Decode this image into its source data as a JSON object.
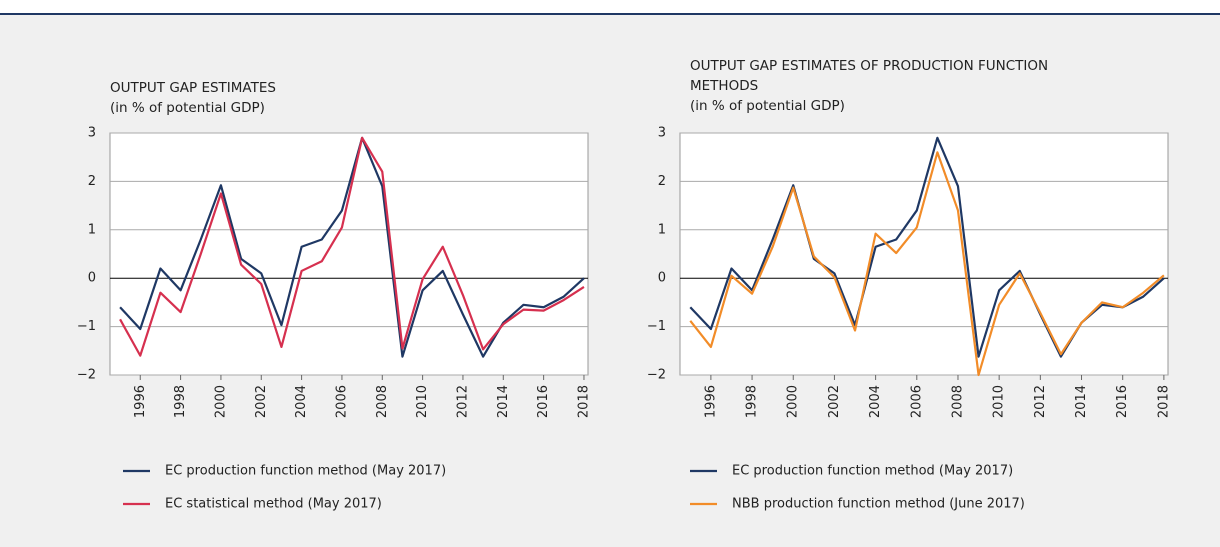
{
  "chart_data": [
    {
      "type": "line",
      "title": "OUTPUT GAP ESTIMATES",
      "subtitle": "(in % of potential GDP)",
      "x": [
        1995,
        1996,
        1997,
        1998,
        1999,
        2000,
        2001,
        2002,
        2003,
        2004,
        2005,
        2006,
        2007,
        2008,
        2009,
        2010,
        2011,
        2012,
        2013,
        2014,
        2015,
        2016,
        2017,
        2018
      ],
      "xlim": [
        1994.5,
        2018.2
      ],
      "xticks": [
        1996,
        1998,
        2000,
        2002,
        2004,
        2006,
        2008,
        2010,
        2012,
        2014,
        2016,
        2018
      ],
      "ylim": [
        -2,
        3
      ],
      "yticks": [
        {
          "value": -2,
          "label": "−2"
        },
        {
          "value": -1,
          "label": "−1"
        },
        0,
        1,
        2,
        3
      ],
      "grid": true,
      "series": [
        {
          "name": "EC production function method (May 2017)",
          "color": "#1f3864",
          "values": [
            -0.6,
            -1.05,
            0.2,
            -0.25,
            0.8,
            1.92,
            0.4,
            0.1,
            -0.97,
            0.65,
            0.8,
            1.4,
            2.9,
            1.9,
            -1.62,
            -0.25,
            0.15,
            -0.75,
            -1.62,
            -0.92,
            -0.55,
            -0.6,
            -0.38,
            0
          ]
        },
        {
          "name": "EC statistical method (May 2017)",
          "color": "#d6304f",
          "values": [
            -0.85,
            -1.6,
            -0.3,
            -0.7,
            0.5,
            1.75,
            0.28,
            -0.12,
            -1.42,
            0.15,
            0.35,
            1.05,
            2.9,
            2.2,
            -1.45,
            -0.02,
            0.65,
            -0.35,
            -1.47,
            -0.95,
            -0.65,
            -0.67,
            -0.45,
            -0.18
          ]
        }
      ]
    },
    {
      "type": "line",
      "title": "OUTPUT GAP ESTIMATES OF PRODUCTION FUNCTION METHODS",
      "subtitle": "(in % of potential GDP)",
      "x": [
        1995,
        1996,
        1997,
        1998,
        1999,
        2000,
        2001,
        2002,
        2003,
        2004,
        2005,
        2006,
        2007,
        2008,
        2009,
        2010,
        2011,
        2012,
        2013,
        2014,
        2015,
        2016,
        2017,
        2018
      ],
      "xlim": [
        1994.5,
        2018.2
      ],
      "xticks": [
        1996,
        1998,
        2000,
        2002,
        2004,
        2006,
        2008,
        2010,
        2012,
        2014,
        2016,
        2018
      ],
      "ylim": [
        -2,
        3
      ],
      "yticks": [
        {
          "value": -2,
          "label": "−2"
        },
        {
          "value": -1,
          "label": "−1"
        },
        0,
        1,
        2,
        3
      ],
      "grid": true,
      "series": [
        {
          "name": "EC production function method (May 2017)",
          "color": "#1f3864",
          "values": [
            -0.6,
            -1.05,
            0.2,
            -0.25,
            0.8,
            1.92,
            0.4,
            0.1,
            -0.97,
            0.65,
            0.8,
            1.4,
            2.9,
            1.9,
            -1.62,
            -0.25,
            0.15,
            -0.75,
            -1.62,
            -0.92,
            -0.55,
            -0.6,
            -0.38,
            0
          ]
        },
        {
          "name": "NBB production function method (June 2017)",
          "color": "#f28c28",
          "values": [
            -0.88,
            -1.42,
            0.05,
            -0.32,
            0.65,
            1.87,
            0.45,
            0.02,
            -1.08,
            0.92,
            0.52,
            1.05,
            2.6,
            1.4,
            -2.0,
            -0.55,
            0.1,
            -0.72,
            -1.57,
            -0.92,
            -0.5,
            -0.6,
            -0.3,
            0.06
          ]
        }
      ]
    }
  ]
}
